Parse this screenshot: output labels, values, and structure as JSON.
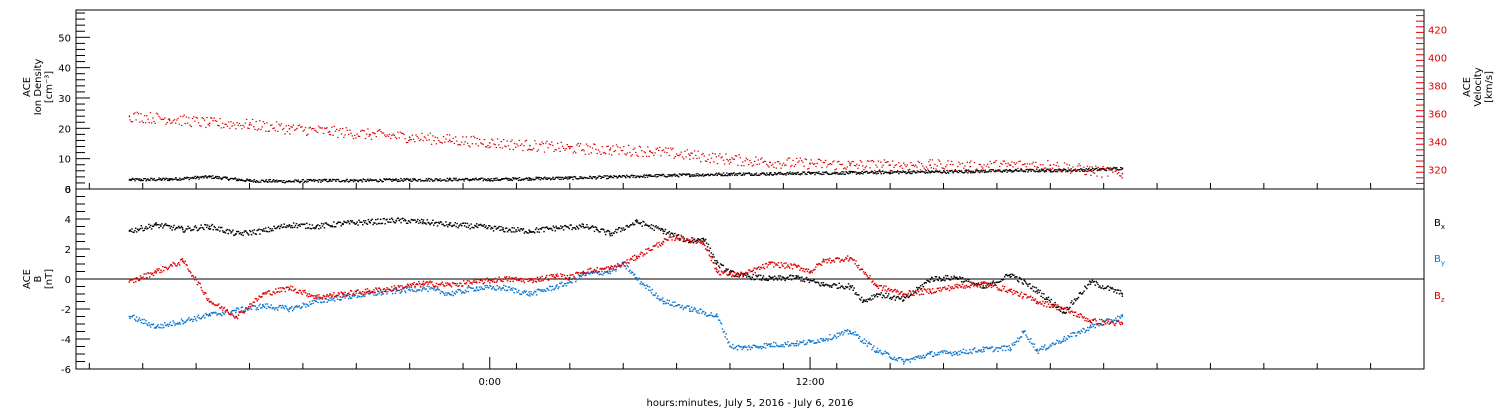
{
  "chart_data": [
    {
      "type": "scatter",
      "panel": "ion-density-velocity",
      "ylabel_lines": [
        "ACE",
        "Ion Density",
        "[cm⁻³]"
      ],
      "ylim": [
        0,
        59
      ],
      "yticks": [
        0,
        10,
        20,
        30,
        40,
        50
      ],
      "y2label_lines": [
        "ACE",
        "Velocity",
        "[km/s]"
      ],
      "y2lim": [
        306,
        434
      ],
      "y2ticks": [
        320,
        340,
        360,
        380,
        400,
        420
      ],
      "series": [
        {
          "axis": "left",
          "color": "#000000",
          "x": [
            -13.5,
            -12.0,
            -10.5,
            -9.0,
            -7.5,
            -6.0,
            -4.5,
            -3.0,
            -1.5,
            0.0,
            1.5,
            3.0,
            4.5,
            6.0,
            7.5,
            9.0,
            10.5,
            12.0,
            13.5,
            15.0,
            16.5,
            18.0,
            19.5,
            21.0,
            22.5,
            23.7
          ],
          "values": [
            3,
            3.2,
            4,
            2.7,
            2.5,
            2.8,
            2.8,
            3,
            3.1,
            3.1,
            3.4,
            3.6,
            3.9,
            4.3,
            4.6,
            4.9,
            5,
            5.2,
            5.3,
            5.5,
            5.6,
            5.8,
            6,
            6.1,
            6.3,
            6.8
          ]
        },
        {
          "axis": "right",
          "color": "#dd0000",
          "x": [
            -13.5,
            -12.0,
            -10.5,
            -9.0,
            -7.5,
            -6.0,
            -4.5,
            -3.0,
            -1.5,
            0.0,
            1.5,
            3.0,
            4.5,
            6.0,
            7.5,
            9.0,
            10.5,
            12.0,
            13.5,
            15.0,
            16.5,
            18.0,
            19.5,
            21.0,
            22.5,
            23.7
          ],
          "values": [
            358,
            356,
            353,
            352,
            349,
            347,
            345,
            343,
            341,
            339,
            337,
            335,
            334,
            333,
            330,
            327,
            325,
            324,
            323,
            323,
            323,
            322,
            323,
            323,
            319,
            317
          ]
        }
      ]
    },
    {
      "type": "scatter",
      "panel": "magnetic-field",
      "ylabel_lines": [
        "ACE",
        "B",
        "[nT]"
      ],
      "ylim": [
        -6,
        6
      ],
      "yticks": [
        -6,
        -4,
        -2,
        0,
        2,
        4,
        6
      ],
      "zero_line": true,
      "series": [
        {
          "name": "Bx",
          "color": "#000000",
          "x": [
            -13.5,
            -12.5,
            -11.5,
            -10.5,
            -9.5,
            -8.5,
            -7.5,
            -6.5,
            -5.5,
            -4.5,
            -3.5,
            -2.5,
            -1.5,
            -0.5,
            0.5,
            1.5,
            2.5,
            3.5,
            4.0,
            4.5,
            5.5,
            6.5,
            7.0,
            7.5,
            8.0,
            8.5,
            9.0,
            9.5,
            10.5,
            11.5,
            12.5,
            13.5,
            14.0,
            14.5,
            15.5,
            16.5,
            17.5,
            18.5,
            19.5,
            20.5,
            21.5,
            22.5,
            23.7
          ],
          "values": [
            3.2,
            3.6,
            3.3,
            3.5,
            3.0,
            3.2,
            3.6,
            3.5,
            3.7,
            3.8,
            3.9,
            3.8,
            3.6,
            3.5,
            3.3,
            3.2,
            3.4,
            3.5,
            3.3,
            3.0,
            3.8,
            3.2,
            2.8,
            2.5,
            2.7,
            1.0,
            0.4,
            0.2,
            0.0,
            0.1,
            -0.4,
            -0.5,
            -1.5,
            -1.0,
            -1.4,
            0.0,
            0.1,
            -0.6,
            0.3,
            -0.8,
            -2.2,
            -0.2,
            -1.0
          ]
        },
        {
          "name": "By",
          "color": "#0a76d0",
          "x": [
            -13.5,
            -12.5,
            -11.5,
            -10.5,
            -9.5,
            -8.5,
            -7.5,
            -6.5,
            -5.5,
            -4.5,
            -3.5,
            -2.5,
            -1.5,
            -0.5,
            0.5,
            1.5,
            2.5,
            3.0,
            3.5,
            4.5,
            5.0,
            5.5,
            6.5,
            7.5,
            8.5,
            9.0,
            9.5,
            10.5,
            11.5,
            12.0,
            12.5,
            13.5,
            14.5,
            15.5,
            16.5,
            17.5,
            18.5,
            19.5,
            20.0,
            20.5,
            21.5,
            22.5,
            23.7
          ],
          "values": [
            -2.5,
            -3.2,
            -2.8,
            -2.4,
            -2.1,
            -1.8,
            -2.0,
            -1.5,
            -1.2,
            -1.0,
            -0.8,
            -0.6,
            -1.0,
            -0.6,
            -0.6,
            -1.0,
            -0.5,
            -0.2,
            0.3,
            0.5,
            1.0,
            0.0,
            -1.5,
            -2.0,
            -2.5,
            -4.5,
            -4.6,
            -4.4,
            -4.3,
            -4.2,
            -4.0,
            -3.5,
            -4.8,
            -5.5,
            -5.0,
            -4.9,
            -4.7,
            -4.6,
            -3.5,
            -4.8,
            -4.0,
            -3.2,
            -2.5
          ]
        },
        {
          "name": "Bz",
          "color": "#dd0000",
          "x": [
            -13.5,
            -12.5,
            -11.5,
            -10.5,
            -9.5,
            -8.5,
            -7.5,
            -6.5,
            -5.5,
            -4.5,
            -3.5,
            -2.5,
            -1.5,
            -0.5,
            0.5,
            1.5,
            2.5,
            3.0,
            3.5,
            4.5,
            5.0,
            5.5,
            6.5,
            7.0,
            7.5,
            8.0,
            8.5,
            9.0,
            9.5,
            10.5,
            11.5,
            12.0,
            12.5,
            13.5,
            14.5,
            15.5,
            16.5,
            17.5,
            18.5,
            19.5,
            20.5,
            21.5,
            22.5,
            23.7
          ],
          "values": [
            -0.2,
            0.5,
            1.2,
            -1.5,
            -2.5,
            -1.0,
            -0.6,
            -1.2,
            -1.0,
            -0.8,
            -0.6,
            -0.3,
            -0.4,
            -0.2,
            0.0,
            -0.1,
            0.2,
            0.1,
            0.5,
            0.7,
            1.0,
            1.5,
            2.5,
            2.8,
            2.6,
            2.4,
            0.5,
            0.3,
            0.3,
            1.0,
            0.8,
            0.5,
            1.2,
            1.4,
            -0.5,
            -1.0,
            -0.8,
            -0.5,
            -0.3,
            -0.8,
            -1.5,
            -2.0,
            -2.8,
            -3.0
          ]
        }
      ]
    }
  ],
  "xaxis": {
    "range_hours": [
      -15.5,
      35.0
    ],
    "labeled_ticks": [
      {
        "x": 0,
        "label": "0:00"
      },
      {
        "x": 12,
        "label": "12:00"
      }
    ],
    "minor_tick_step_hours": 2,
    "title": "hours:minutes, July  5, 2016 - July  6, 2016"
  },
  "legend": {
    "entries": [
      {
        "base": "B",
        "sub": "x",
        "color": "#000000"
      },
      {
        "base": "B",
        "sub": "y",
        "color": "#0a76d0"
      },
      {
        "base": "B",
        "sub": "z",
        "color": "#dd0000"
      }
    ],
    "placement": "right"
  }
}
